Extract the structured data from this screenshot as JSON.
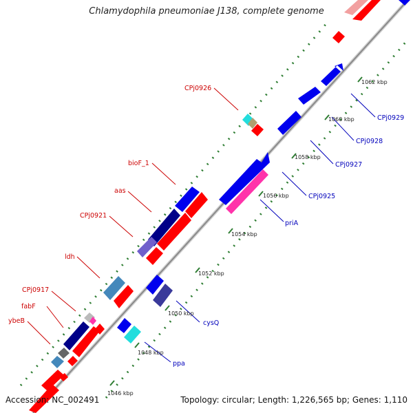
{
  "title": "Chlamydophila pneumoniae J138, complete genome",
  "accession": "Accession: NC_002491",
  "summary": "Topology: circular; Length: 1,226,565 bp; Genes: 1,110",
  "colors": {
    "backbone": "#9a9a9a",
    "ticks": "#2e7d32",
    "forward_label": "#cc0000",
    "reverse_label": "#0000bb",
    "forward_gene": "#ff0000",
    "reverse_gene": "#0000ee"
  },
  "tick_labels": [
    "1046 kbp",
    "1048 kbp",
    "1050 kbp",
    "1052 kbp",
    "1054 kbp",
    "1056 kbp",
    "1058 kbp",
    "1060 kbp",
    "1062 kbp"
  ],
  "genes": [
    {
      "name": "CPj0926",
      "strand": "forward"
    },
    {
      "name": "bioF_1",
      "strand": "forward"
    },
    {
      "name": "aas",
      "strand": "forward"
    },
    {
      "name": "CPj0921",
      "strand": "forward"
    },
    {
      "name": "ldh",
      "strand": "forward"
    },
    {
      "name": "CPj0917",
      "strand": "forward"
    },
    {
      "name": "fabF",
      "strand": "forward"
    },
    {
      "name": "ybeB",
      "strand": "forward"
    },
    {
      "name": "CPj0929",
      "strand": "reverse"
    },
    {
      "name": "CPj0928",
      "strand": "reverse"
    },
    {
      "name": "CPj0927",
      "strand": "reverse"
    },
    {
      "name": "CPj0925",
      "strand": "reverse"
    },
    {
      "name": "priA",
      "strand": "reverse"
    },
    {
      "name": "cysQ",
      "strand": "reverse"
    },
    {
      "name": "ppa",
      "strand": "reverse"
    }
  ]
}
